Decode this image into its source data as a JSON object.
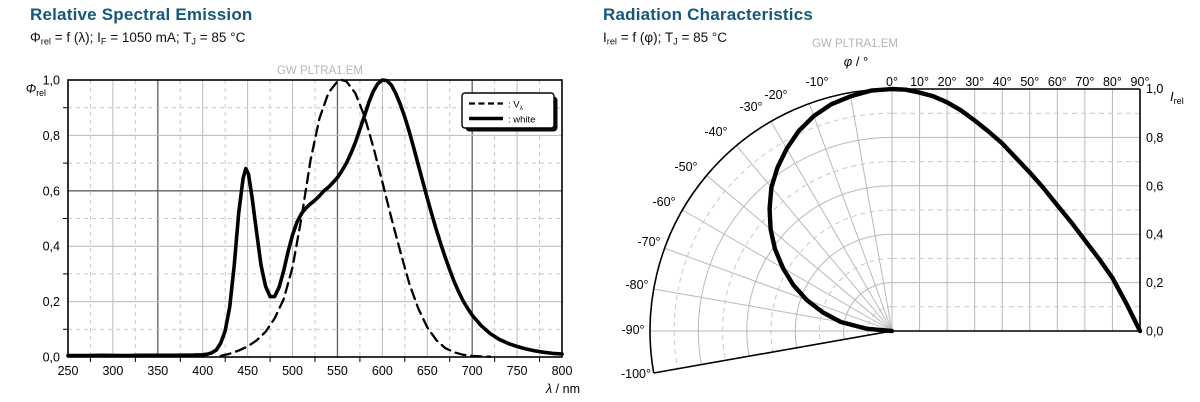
{
  "colors": {
    "title": "#15587c",
    "text": "#111111",
    "watermark": "#b5b5b5",
    "grid_light": "#b9b9b9",
    "grid_dashed": "#c8c8c8",
    "grid_dark": "#5f5f5f",
    "frame": "#000000",
    "curve": "#000000"
  },
  "left_chart": {
    "title": "Relative Spectral Emission",
    "condition": [
      {
        "t": "Φ"
      },
      {
        "t": "rel",
        "sub": true
      },
      {
        "t": " = f (λ); I"
      },
      {
        "t": "F",
        "sub": true
      },
      {
        "t": " = 1050 mA; T"
      },
      {
        "t": "J",
        "sub": true
      },
      {
        "t": " = 85 °C"
      }
    ],
    "watermark": "GW PLTRA1.EM",
    "y_axis_label": [
      {
        "t": "Φ",
        "i": true
      },
      {
        "t": "rel",
        "sub": true
      }
    ],
    "x_axis_label": [
      {
        "t": "λ",
        "i": true
      },
      {
        "t": " / nm"
      }
    ],
    "x_tick_labels": [
      "250",
      "300",
      "350",
      "400",
      "450",
      "500",
      "550",
      "600",
      "650",
      "700",
      "750",
      "800"
    ],
    "y_tick_labels": [
      "1,0",
      "0,8",
      "0,6",
      "0,4",
      "0,2",
      "0,0"
    ],
    "legend": [
      {
        "style": "dashed",
        "label": [
          {
            "t": ": V"
          },
          {
            "t": "λ",
            "sub": true
          }
        ]
      },
      {
        "style": "solid",
        "label": [
          {
            "t": ": white"
          }
        ]
      }
    ]
  },
  "right_chart": {
    "title": "Radiation Characteristics",
    "condition": [
      {
        "t": "I"
      },
      {
        "t": "rel",
        "sub": true
      },
      {
        "t": " = f (φ); T"
      },
      {
        "t": "J",
        "sub": true
      },
      {
        "t": " = 85 °C"
      }
    ],
    "watermark": "GW PLTRA1.EM",
    "angle_axis_label": [
      {
        "t": "φ",
        "i": true
      },
      {
        "t": " / °"
      }
    ],
    "radius_axis_label": [
      {
        "t": "I",
        "i": true
      },
      {
        "t": "rel",
        "sub": true
      }
    ],
    "top_angle_labels": [
      "-10°",
      "0°",
      "10°",
      "20°",
      "30°",
      "40°",
      "50°",
      "60°",
      "70°",
      "80°",
      "90°"
    ],
    "arc_angle_labels": [
      "-20°",
      "-30°",
      "-40°",
      "-50°",
      "-60°",
      "-70°",
      "-80°",
      "-90°",
      "-100°"
    ],
    "radius_tick_labels": [
      "1,0",
      "0,8",
      "0,6",
      "0,4",
      "0,2",
      "0,0"
    ]
  },
  "chart_data": [
    {
      "id": "relative_spectral_emission",
      "type": "line",
      "title": "Relative Spectral Emission",
      "subtitle": "Phi_rel = f (lambda); I_F = 1050 mA; T_J = 85 °C",
      "xlabel": "λ / nm",
      "ylabel": "Φ_rel",
      "xlim": [
        250,
        800
      ],
      "ylim": [
        0,
        1
      ],
      "x_major_step": 50,
      "x_minor_step": 25,
      "y_major_step": 0.2,
      "y_minor_step": 0.1,
      "emphasized_x_gridlines": [
        350,
        550,
        700
      ],
      "emphasized_y_gridlines": [
        0.6
      ],
      "legend_position": "top-right",
      "series": [
        {
          "name": "V_lambda",
          "style": "dashed",
          "points": [
            [
              420,
              0.004
            ],
            [
              430,
              0.012
            ],
            [
              440,
              0.023
            ],
            [
              450,
              0.038
            ],
            [
              460,
              0.06
            ],
            [
              470,
              0.091
            ],
            [
              480,
              0.139
            ],
            [
              490,
              0.208
            ],
            [
              500,
              0.323
            ],
            [
              510,
              0.503
            ],
            [
              520,
              0.71
            ],
            [
              530,
              0.862
            ],
            [
              540,
              0.954
            ],
            [
              550,
              0.995
            ],
            [
              555,
              1.0
            ],
            [
              560,
              0.995
            ],
            [
              570,
              0.952
            ],
            [
              580,
              0.87
            ],
            [
              590,
              0.757
            ],
            [
              600,
              0.631
            ],
            [
              610,
              0.503
            ],
            [
              620,
              0.381
            ],
            [
              630,
              0.265
            ],
            [
              640,
              0.175
            ],
            [
              650,
              0.107
            ],
            [
              660,
              0.061
            ],
            [
              670,
              0.032
            ],
            [
              680,
              0.017
            ],
            [
              690,
              0.008
            ],
            [
              700,
              0.004
            ],
            [
              710,
              0.002
            ],
            [
              720,
              0.001
            ]
          ]
        },
        {
          "name": "white",
          "style": "solid",
          "points": [
            [
              250,
              0.005
            ],
            [
              270,
              0.005
            ],
            [
              290,
              0.006
            ],
            [
              310,
              0.005
            ],
            [
              330,
              0.006
            ],
            [
              350,
              0.006
            ],
            [
              370,
              0.006
            ],
            [
              390,
              0.007
            ],
            [
              400,
              0.008
            ],
            [
              405,
              0.01
            ],
            [
              410,
              0.015
            ],
            [
              415,
              0.025
            ],
            [
              420,
              0.05
            ],
            [
              425,
              0.095
            ],
            [
              430,
              0.18
            ],
            [
              435,
              0.33
            ],
            [
              440,
              0.52
            ],
            [
              445,
              0.645
            ],
            [
              448,
              0.68
            ],
            [
              451,
              0.66
            ],
            [
              455,
              0.575
            ],
            [
              460,
              0.45
            ],
            [
              465,
              0.33
            ],
            [
              470,
              0.255
            ],
            [
              475,
              0.218
            ],
            [
              480,
              0.218
            ],
            [
              485,
              0.252
            ],
            [
              490,
              0.31
            ],
            [
              495,
              0.38
            ],
            [
              500,
              0.44
            ],
            [
              505,
              0.487
            ],
            [
              510,
              0.518
            ],
            [
              515,
              0.538
            ],
            [
              520,
              0.553
            ],
            [
              525,
              0.566
            ],
            [
              530,
              0.582
            ],
            [
              535,
              0.6
            ],
            [
              540,
              0.613
            ],
            [
              545,
              0.63
            ],
            [
              550,
              0.648
            ],
            [
              555,
              0.672
            ],
            [
              560,
              0.7
            ],
            [
              565,
              0.735
            ],
            [
              570,
              0.775
            ],
            [
              575,
              0.822
            ],
            [
              580,
              0.87
            ],
            [
              585,
              0.92
            ],
            [
              590,
              0.96
            ],
            [
              595,
              0.987
            ],
            [
              600,
              1.0
            ],
            [
              605,
              0.998
            ],
            [
              610,
              0.982
            ],
            [
              615,
              0.952
            ],
            [
              620,
              0.912
            ],
            [
              625,
              0.866
            ],
            [
              630,
              0.813
            ],
            [
              635,
              0.754
            ],
            [
              640,
              0.693
            ],
            [
              645,
              0.633
            ],
            [
              650,
              0.573
            ],
            [
              655,
              0.515
            ],
            [
              660,
              0.46
            ],
            [
              665,
              0.409
            ],
            [
              670,
              0.36
            ],
            [
              675,
              0.315
            ],
            [
              680,
              0.272
            ],
            [
              685,
              0.235
            ],
            [
              690,
              0.202
            ],
            [
              695,
              0.175
            ],
            [
              700,
              0.151
            ],
            [
              710,
              0.113
            ],
            [
              720,
              0.085
            ],
            [
              730,
              0.064
            ],
            [
              740,
              0.049
            ],
            [
              750,
              0.038
            ],
            [
              760,
              0.029
            ],
            [
              770,
              0.022
            ],
            [
              780,
              0.017
            ],
            [
              790,
              0.013
            ],
            [
              800,
              0.011
            ]
          ]
        }
      ]
    },
    {
      "id": "radiation_characteristics",
      "type": "polar",
      "title": "Radiation Characteristics",
      "subtitle": "I_rel = f (phi); T_J = 85 °C",
      "angle_label": "φ / °",
      "radius_label": "I_rel",
      "angle_range": [
        -100,
        90
      ],
      "angle_step": 10,
      "r_range": [
        0,
        1
      ],
      "r_major_step": 0.2,
      "r_minor_step": 0.1,
      "series": [
        {
          "name": "radiation",
          "points": [
            [
              -90,
              0
            ],
            [
              -85,
              0.105
            ],
            [
              -80,
              0.215
            ],
            [
              -75,
              0.295
            ],
            [
              -70,
              0.375
            ],
            [
              -65,
              0.45
            ],
            [
              -60,
              0.52
            ],
            [
              -55,
              0.59
            ],
            [
              -50,
              0.655
            ],
            [
              -45,
              0.715
            ],
            [
              -40,
              0.775
            ],
            [
              -35,
              0.825
            ],
            [
              -30,
              0.87
            ],
            [
              -25,
              0.912
            ],
            [
              -20,
              0.945
            ],
            [
              -15,
              0.97
            ],
            [
              -10,
              0.985
            ],
            [
              -5,
              0.997
            ],
            [
              0,
              1.0
            ],
            [
              5,
              0.997
            ],
            [
              10,
              0.985
            ],
            [
              15,
              0.97
            ],
            [
              20,
              0.945
            ],
            [
              25,
              0.912
            ],
            [
              30,
              0.87
            ],
            [
              35,
              0.825
            ],
            [
              40,
              0.775
            ],
            [
              45,
              0.715
            ],
            [
              50,
              0.655
            ],
            [
              55,
              0.59
            ],
            [
              60,
              0.52
            ],
            [
              65,
              0.45
            ],
            [
              70,
              0.375
            ],
            [
              75,
              0.3
            ],
            [
              80,
              0.22
            ],
            [
              85,
              0.115
            ],
            [
              90,
              0
            ]
          ]
        }
      ]
    }
  ]
}
